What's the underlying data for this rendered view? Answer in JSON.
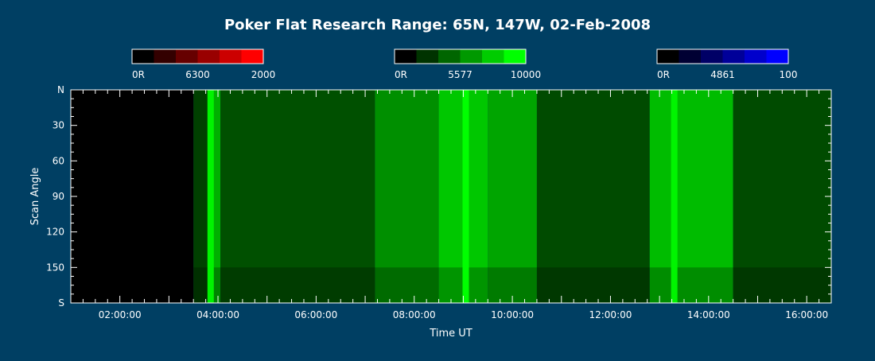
{
  "colors": {
    "background": "#003f63",
    "axis": "#ffffff",
    "red_scale": [
      "#000000",
      "#330000",
      "#660000",
      "#990000",
      "#cc0000",
      "#ff0000"
    ],
    "green_scale": [
      "#000000",
      "#003300",
      "#006600",
      "#009900",
      "#00cc00",
      "#00ff00"
    ],
    "blue_scale": [
      "#000000",
      "#000033",
      "#000066",
      "#000099",
      "#0000cc",
      "#0000ff"
    ]
  },
  "chart_data": {
    "type": "heatmap",
    "title": "Poker Flat Research Range: 65N, 147W, 02-Feb-2008",
    "xlabel": "Time UT",
    "ylabel": "Scan Angle",
    "xlim_hours": [
      1.0,
      16.5
    ],
    "x_ticks": [
      {
        "hour": 2,
        "label": "02:00:00"
      },
      {
        "hour": 4,
        "label": "04:00:00"
      },
      {
        "hour": 6,
        "label": "06:00:00"
      },
      {
        "hour": 8,
        "label": "08:00:00"
      },
      {
        "hour": 10,
        "label": "10:00:00"
      },
      {
        "hour": 12,
        "label": "12:00:00"
      },
      {
        "hour": 14,
        "label": "14:00:00"
      },
      {
        "hour": 16,
        "label": "16:00:00"
      }
    ],
    "ylim": [
      0,
      180
    ],
    "y_ticks": [
      {
        "value": 0,
        "label": "N"
      },
      {
        "value": 30,
        "label": "30"
      },
      {
        "value": 60,
        "label": "60"
      },
      {
        "value": 90,
        "label": "90"
      },
      {
        "value": 120,
        "label": "120"
      },
      {
        "value": 150,
        "label": "150"
      },
      {
        "value": 180,
        "label": "S"
      }
    ],
    "colorbars": [
      {
        "wavelength": "6300",
        "min_label": "0R",
        "max_label": "2000",
        "scale": "red"
      },
      {
        "wavelength": "5577",
        "min_label": "0R",
        "max_label": "10000",
        "scale": "green"
      },
      {
        "wavelength": "4861",
        "min_label": "0R",
        "max_label": "100",
        "scale": "blue"
      }
    ],
    "data_start_hour": 3.5,
    "time_blocks": [
      {
        "start": 3.5,
        "end": 3.8,
        "level": 0.15
      },
      {
        "start": 3.8,
        "end": 4.05,
        "level": 0.65
      },
      {
        "start": 4.05,
        "end": 7.2,
        "level": 0.22
      },
      {
        "start": 7.2,
        "end": 8.5,
        "level": 0.5
      },
      {
        "start": 8.5,
        "end": 9.5,
        "level": 0.75
      },
      {
        "start": 9.5,
        "end": 10.5,
        "level": 0.6
      },
      {
        "start": 10.5,
        "end": 12.8,
        "level": 0.2
      },
      {
        "start": 12.8,
        "end": 14.5,
        "level": 0.7
      },
      {
        "start": 14.5,
        "end": 16.5,
        "level": 0.2
      }
    ],
    "bright_features": [
      {
        "hour": 3.85,
        "level": 0.95
      },
      {
        "hour": 9.05,
        "level": 1.0
      },
      {
        "hour": 13.3,
        "level": 0.95
      }
    ]
  }
}
